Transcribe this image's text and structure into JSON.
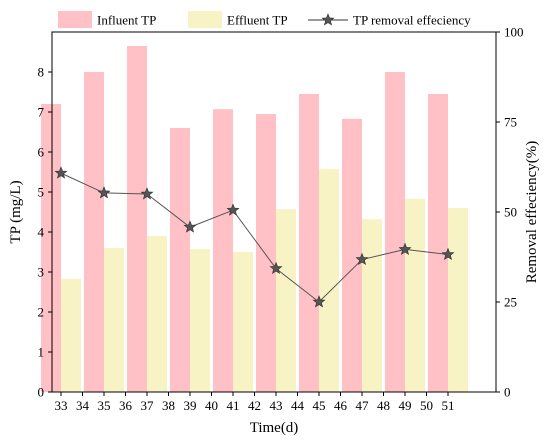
{
  "chart_data": {
    "type": "bar",
    "xlabel": "Time(d)",
    "ylabel": "TP (mg/L)",
    "y2label": "Removal effeciency(%)",
    "ylim": [
      0,
      9
    ],
    "y2lim": [
      0,
      100
    ],
    "x_ticks": [
      "33",
      "34",
      "35",
      "36",
      "37",
      "38",
      "39",
      "40",
      "41",
      "42",
      "43",
      "44",
      "45",
      "46",
      "47",
      "48",
      "49",
      "50",
      "51"
    ],
    "y_ticks": [
      "0",
      "1",
      "2",
      "3",
      "4",
      "5",
      "6",
      "7",
      "8"
    ],
    "y2_ticks": [
      "0",
      "25",
      "50",
      "75",
      "100"
    ],
    "categories": [
      33,
      35,
      37,
      39,
      41,
      43,
      45,
      47,
      49,
      51
    ],
    "series": [
      {
        "name": "Influent TP",
        "kind": "bar",
        "color": "#ffc0c6",
        "values": [
          7.2,
          8.0,
          8.65,
          6.6,
          7.07,
          6.95,
          7.45,
          6.83,
          8.0,
          7.45
        ]
      },
      {
        "name": "Effluent TP",
        "kind": "bar",
        "color": "#f7f3c5",
        "values": [
          2.83,
          3.6,
          3.9,
          3.57,
          3.5,
          4.57,
          5.58,
          4.32,
          4.83,
          4.6
        ]
      },
      {
        "name": "TP removal effeciency",
        "kind": "line",
        "axis": "right",
        "color": "#555555",
        "marker": "star",
        "values": [
          60.8,
          55.3,
          55.0,
          45.8,
          50.5,
          34.3,
          25.0,
          36.8,
          39.6,
          38.2
        ]
      }
    ],
    "grid": false,
    "legend_position": "top"
  }
}
